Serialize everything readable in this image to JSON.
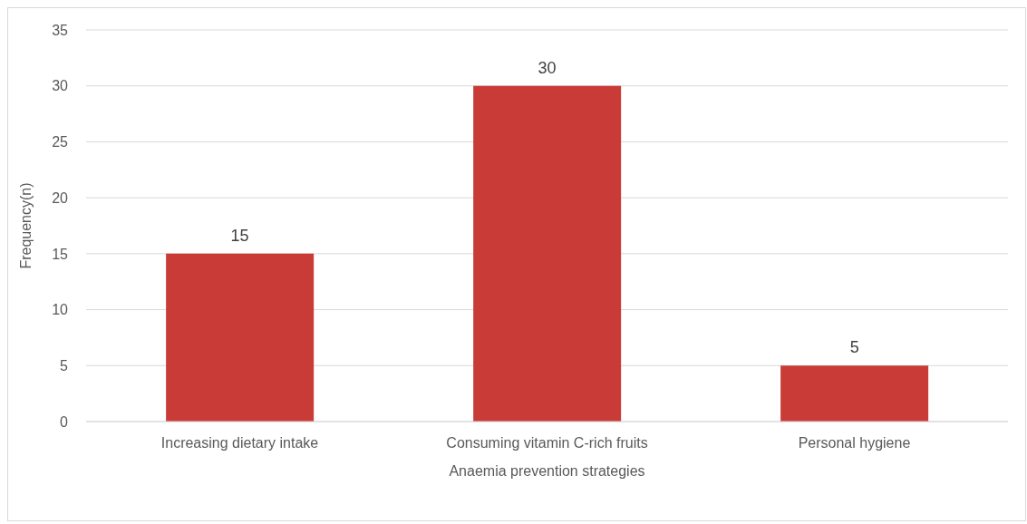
{
  "chart_data": {
    "type": "bar",
    "xlabel": "Anaemia prevention strategies",
    "ylabel": "Frequency(n)",
    "categories": [
      "Increasing dietary intake",
      "Consuming vitamin C-rich fruits",
      "Personal hygiene"
    ],
    "values": [
      15,
      30,
      5
    ],
    "color": "#c93b37",
    "ylim": [
      0,
      35
    ],
    "yticks": [
      0,
      5,
      10,
      15,
      20,
      25,
      30,
      35
    ],
    "grid": "y",
    "data_labels": true,
    "legend": false
  }
}
